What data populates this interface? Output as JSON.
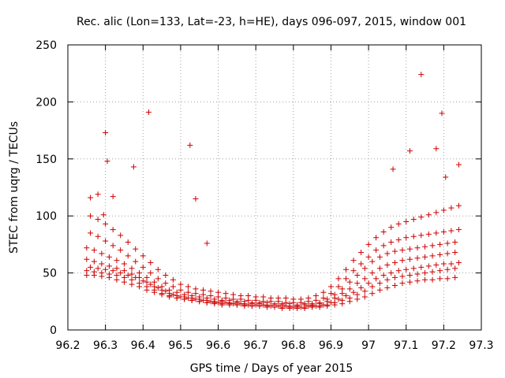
{
  "chart_data": {
    "type": "scatter",
    "title": "Rec. alic (Lon=133, Lat=-23, h=HE), days 096-097, 2015, window 001",
    "xlabel": "GPS time / Days of year 2015",
    "ylabel": "STEC from uqrg / TECUs",
    "xlim": [
      96.2,
      97.3
    ],
    "ylim": [
      0,
      250
    ],
    "xticks": [
      96.2,
      96.3,
      96.4,
      96.5,
      96.6,
      96.7,
      96.8,
      96.9,
      97.0,
      97.1,
      97.2,
      97.3
    ],
    "xtick_labels": [
      "96.2",
      "96.3",
      "96.4",
      "96.5",
      "96.6",
      "96.7",
      "96.8",
      "96.9",
      "97",
      "97.1",
      "97.2",
      "97.3"
    ],
    "yticks": [
      0,
      50,
      100,
      150,
      200,
      250
    ],
    "ytick_labels": [
      "0",
      "50",
      "100",
      "150",
      "200",
      "250"
    ],
    "grid": true,
    "marker": "+",
    "color": "#cc0000",
    "series": [
      {
        "name": "track-1",
        "x": [
          96.25,
          96.27,
          96.29,
          96.31,
          96.33,
          96.35,
          96.37,
          96.39,
          96.41,
          96.43,
          96.45,
          96.47,
          96.49,
          96.51,
          96.53,
          96.55,
          96.57,
          96.59,
          96.61,
          96.63,
          96.65,
          96.67,
          96.69,
          96.71,
          96.73,
          96.75,
          96.77,
          96.79,
          96.81,
          96.83,
          96.85,
          96.87,
          96.89,
          96.91,
          96.93,
          96.95,
          96.97,
          96.99,
          97.01,
          97.03,
          97.05,
          97.07,
          97.09,
          97.11,
          97.13,
          97.15,
          97.17,
          97.19,
          97.21,
          97.23
        ],
        "y": [
          48,
          48,
          47,
          46,
          44,
          42,
          40,
          38,
          35,
          33,
          31,
          29,
          28,
          27,
          26,
          25,
          24,
          23,
          22,
          22,
          22,
          21,
          21,
          21,
          20,
          20,
          19,
          19,
          19,
          19,
          20,
          20,
          21,
          22,
          23,
          25,
          27,
          29,
          32,
          35,
          37,
          39,
          41,
          42,
          43,
          44,
          44,
          45,
          45,
          46
        ]
      },
      {
        "name": "track-2",
        "x": [
          96.25,
          96.27,
          96.29,
          96.31,
          96.33,
          96.35,
          96.37,
          96.39,
          96.41,
          96.43,
          96.45,
          96.47,
          96.49,
          96.51,
          96.53,
          96.55,
          96.57,
          96.59,
          96.61,
          96.63,
          96.65,
          96.67,
          96.69,
          96.71,
          96.73,
          96.75,
          96.77,
          96.79,
          96.81,
          96.83,
          96.85,
          96.87,
          96.89,
          96.91,
          96.93,
          96.95,
          96.97,
          96.99,
          97.01,
          97.03,
          97.05,
          97.07,
          97.09,
          97.11,
          97.13,
          97.15,
          97.17,
          97.19,
          97.21,
          97.23
        ],
        "y": [
          52,
          51,
          50,
          49,
          48,
          46,
          44,
          41,
          38,
          35,
          32,
          30,
          28,
          27,
          26,
          25,
          24,
          24,
          23,
          23,
          22,
          22,
          21,
          21,
          21,
          20,
          20,
          20,
          20,
          20,
          21,
          21,
          22,
          24,
          26,
          28,
          31,
          34,
          38,
          41,
          44,
          46,
          47,
          48,
          49,
          50,
          51,
          52,
          53,
          54
        ]
      },
      {
        "name": "track-3",
        "x": [
          96.26,
          96.28,
          96.3,
          96.32,
          96.34,
          96.36,
          96.38,
          96.4,
          96.42,
          96.44,
          96.46,
          96.48,
          96.5,
          96.52,
          96.54,
          96.56,
          96.58,
          96.6,
          96.62,
          96.64,
          96.66,
          96.68,
          96.7,
          96.72,
          96.74,
          96.76,
          96.78,
          96.8,
          96.82,
          96.84,
          96.86,
          96.88,
          96.9,
          96.92,
          96.94,
          96.96,
          96.98,
          97.0,
          97.02,
          97.04,
          97.06,
          97.08,
          97.1,
          97.12,
          97.14,
          97.16,
          97.18,
          97.2,
          97.22,
          97.24
        ],
        "y": [
          55,
          54,
          53,
          52,
          50,
          48,
          46,
          43,
          40,
          37,
          34,
          31,
          29,
          28,
          27,
          26,
          25,
          24,
          24,
          23,
          23,
          22,
          22,
          22,
          21,
          21,
          21,
          20,
          20,
          21,
          21,
          22,
          24,
          27,
          30,
          33,
          37,
          41,
          45,
          48,
          50,
          52,
          53,
          54,
          55,
          56,
          57,
          58,
          58,
          59
        ]
      },
      {
        "name": "track-4",
        "x": [
          96.25,
          96.27,
          96.29,
          96.31,
          96.33,
          96.35,
          96.37,
          96.39,
          96.41,
          96.43,
          96.45,
          96.47,
          96.49,
          96.51,
          96.53,
          96.55,
          96.57,
          96.59,
          96.61,
          96.63,
          96.65,
          96.67,
          96.69,
          96.71,
          96.73,
          96.75,
          96.77,
          96.79,
          96.81,
          96.83,
          96.85,
          96.87,
          96.89,
          96.91,
          96.93,
          96.95,
          96.97,
          96.99,
          97.01,
          97.03,
          97.05,
          97.07,
          97.09,
          97.11,
          97.13,
          97.15,
          97.17,
          97.19,
          97.21,
          97.23
        ],
        "y": [
          62,
          60,
          58,
          56,
          54,
          52,
          49,
          46,
          42,
          38,
          35,
          32,
          30,
          29,
          28,
          27,
          26,
          25,
          25,
          24,
          24,
          23,
          23,
          23,
          22,
          22,
          22,
          21,
          21,
          22,
          22,
          23,
          25,
          28,
          32,
          36,
          41,
          45,
          50,
          54,
          57,
          59,
          61,
          62,
          63,
          64,
          65,
          66,
          67,
          68
        ]
      },
      {
        "name": "track-5",
        "x": [
          96.25,
          96.27,
          96.29,
          96.31,
          96.33,
          96.35,
          96.37,
          96.39,
          96.41,
          96.43,
          96.45,
          96.47,
          96.49,
          96.51,
          96.53,
          96.55,
          96.57,
          96.59,
          96.61,
          96.63,
          96.65,
          96.67,
          96.69,
          96.71,
          96.73,
          96.75,
          96.77,
          96.79,
          96.81,
          96.83,
          96.85,
          96.87,
          96.89,
          96.91,
          96.93,
          96.95,
          96.97,
          96.99,
          97.01,
          97.03,
          97.05,
          97.07,
          97.09,
          97.11,
          97.13,
          97.15,
          97.17,
          97.19,
          97.21,
          97.23
        ],
        "y": [
          72,
          70,
          67,
          64,
          61,
          58,
          54,
          50,
          46,
          42,
          38,
          35,
          33,
          31,
          30,
          29,
          28,
          27,
          26,
          26,
          25,
          25,
          24,
          24,
          24,
          23,
          23,
          23,
          22,
          23,
          23,
          24,
          27,
          31,
          36,
          42,
          48,
          54,
          60,
          64,
          67,
          69,
          70,
          71,
          72,
          73,
          74,
          75,
          76,
          77
        ]
      },
      {
        "name": "track-6",
        "x": [
          96.26,
          96.28,
          96.3,
          96.32,
          96.34,
          96.36,
          96.38,
          96.4,
          96.42,
          96.44,
          96.46,
          96.48,
          96.5,
          96.52,
          96.54,
          96.56,
          96.58,
          96.6,
          96.62,
          96.64,
          96.66,
          96.68,
          96.7,
          96.72,
          96.74,
          96.76,
          96.78,
          96.8,
          96.82,
          96.84,
          96.86,
          96.88,
          96.9,
          96.92,
          96.94,
          96.96,
          96.98,
          97.0,
          97.02,
          97.04,
          97.06,
          97.08,
          97.1,
          97.12,
          97.14,
          97.16,
          97.18,
          97.2,
          97.22,
          97.24
        ],
        "y": [
          85,
          82,
          78,
          74,
          70,
          65,
          60,
          55,
          50,
          45,
          41,
          38,
          35,
          33,
          32,
          31,
          30,
          29,
          28,
          27,
          27,
          26,
          26,
          25,
          25,
          25,
          24,
          24,
          24,
          25,
          26,
          28,
          32,
          38,
          45,
          52,
          58,
          64,
          70,
          74,
          77,
          79,
          81,
          82,
          83,
          84,
          85,
          86,
          87,
          88
        ]
      },
      {
        "name": "track-7",
        "x": [
          96.26,
          96.28,
          96.3,
          96.32,
          96.34,
          96.36,
          96.38,
          96.4,
          96.42,
          96.44,
          96.46,
          96.48,
          96.5,
          96.52,
          96.54,
          96.56,
          96.58,
          96.6,
          96.62,
          96.64,
          96.66,
          96.68,
          96.7,
          96.72,
          96.74,
          96.76,
          96.78,
          96.8,
          96.82,
          96.84,
          96.86,
          96.88,
          96.9,
          96.92,
          96.94,
          96.96,
          96.98,
          97.0,
          97.02,
          97.04,
          97.06,
          97.08,
          97.1,
          97.12,
          97.14,
          97.16,
          97.18,
          97.2,
          97.22,
          97.24
        ],
        "y": [
          100,
          97,
          93,
          88,
          83,
          77,
          71,
          65,
          59,
          53,
          48,
          44,
          40,
          38,
          36,
          35,
          34,
          33,
          32,
          31,
          30,
          30,
          29,
          29,
          28,
          28,
          28,
          27,
          27,
          28,
          30,
          33,
          38,
          45,
          53,
          61,
          68,
          75,
          81,
          86,
          90,
          93,
          95,
          97,
          99,
          101,
          103,
          105,
          107,
          109
        ]
      },
      {
        "name": "outliers",
        "x": [
          96.26,
          96.28,
          96.295,
          96.3,
          96.305,
          96.32,
          96.375,
          96.415,
          96.525,
          96.54,
          96.57,
          97.065,
          97.11,
          97.14,
          97.18,
          97.195,
          97.205,
          97.24
        ],
        "y": [
          116,
          119,
          101,
          173,
          148,
          117,
          143,
          191,
          162,
          115,
          76,
          141,
          157,
          224,
          159,
          190,
          134,
          145
        ]
      }
    ]
  }
}
